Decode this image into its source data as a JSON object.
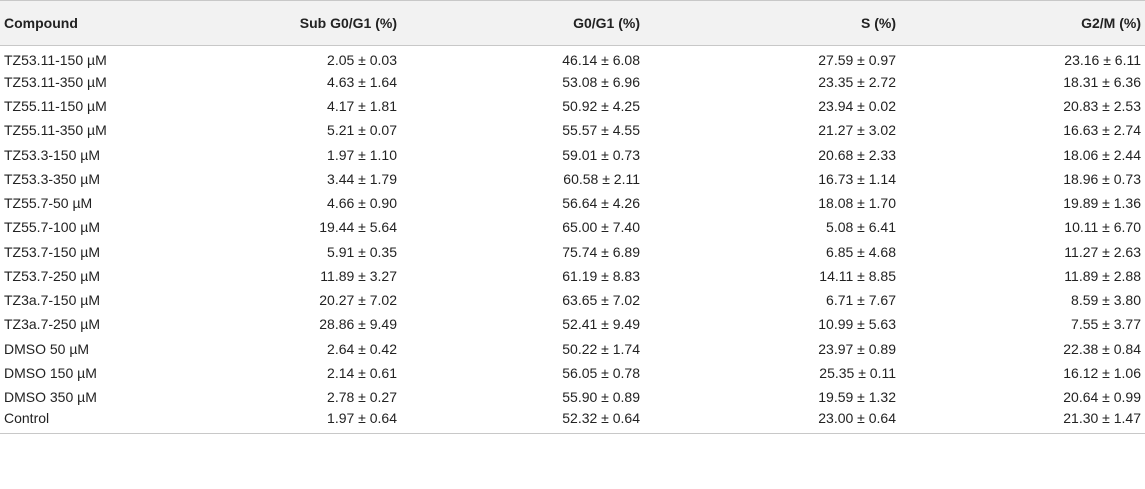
{
  "table": {
    "headers": [
      "Compound",
      "Sub G0/G1 (%)",
      "G0/G1 (%)",
      "S (%)",
      "G2/M (%)"
    ],
    "rows": [
      [
        "TZ53.11-150 µM",
        "2.05 ± 0.03",
        "46.14 ± 6.08",
        "27.59 ± 0.97",
        "23.16 ± 6.11"
      ],
      [
        "TZ53.11-350 µM",
        "4.63 ± 1.64",
        "53.08 ± 6.96",
        "23.35 ± 2.72",
        "18.31 ± 6.36"
      ],
      [
        "TZ55.11-150 µM",
        "4.17 ± 1.81",
        "50.92 ± 4.25",
        "23.94 ± 0.02",
        "20.83 ± 2.53"
      ],
      [
        "TZ55.11-350 µM",
        "5.21 ± 0.07",
        "55.57 ± 4.55",
        "21.27 ± 3.02",
        "16.63 ± 2.74"
      ],
      [
        "TZ53.3-150 µM",
        "1.97 ± 1.10",
        "59.01 ± 0.73",
        "20.68 ± 2.33",
        "18.06 ± 2.44"
      ],
      [
        "TZ53.3-350 µM",
        "3.44 ± 1.79",
        "60.58 ± 2.11",
        "16.73 ± 1.14",
        "18.96 ± 0.73"
      ],
      [
        "TZ55.7-50 µM",
        "4.66 ± 0.90",
        "56.64 ± 4.26",
        "18.08 ± 1.70",
        "19.89 ± 1.36"
      ],
      [
        "TZ55.7-100 µM",
        "19.44 ± 5.64",
        "65.00 ± 7.40",
        "5.08 ± 6.41",
        "10.11 ± 6.70"
      ],
      [
        "TZ53.7-150 µM",
        "5.91 ± 0.35",
        "75.74 ± 6.89",
        "6.85 ± 4.68",
        "11.27 ± 2.63"
      ],
      [
        "TZ53.7-250 µM",
        "11.89 ± 3.27",
        "61.19 ± 8.83",
        "14.11 ± 8.85",
        "11.89 ± 2.88"
      ],
      [
        "TZ3a.7-150 µM",
        "20.27 ± 7.02",
        "63.65 ± 7.02",
        "6.71 ± 7.67",
        "8.59 ± 3.80"
      ],
      [
        "TZ3a.7-250 µM",
        "28.86 ± 9.49",
        "52.41 ± 9.49",
        "10.99 ± 5.63",
        "7.55 ± 3.77"
      ],
      [
        "DMSO 50 µM",
        "2.64 ± 0.42",
        "50.22 ± 1.74",
        "23.97 ± 0.89",
        "22.38 ± 0.84"
      ],
      [
        "DMSO 150 µM",
        "2.14 ± 0.61",
        "56.05 ± 0.78",
        "25.35 ± 0.11",
        "16.12 ± 1.06"
      ],
      [
        "DMSO 350 µM",
        "2.78 ± 0.27",
        "55.90 ± 0.89",
        "19.59 ± 1.32",
        "20.64 ± 0.99"
      ],
      [
        "Control",
        "1.97 ± 0.64",
        "52.32 ± 0.64",
        "23.00 ± 0.64",
        "21.30 ± 1.47"
      ]
    ]
  }
}
